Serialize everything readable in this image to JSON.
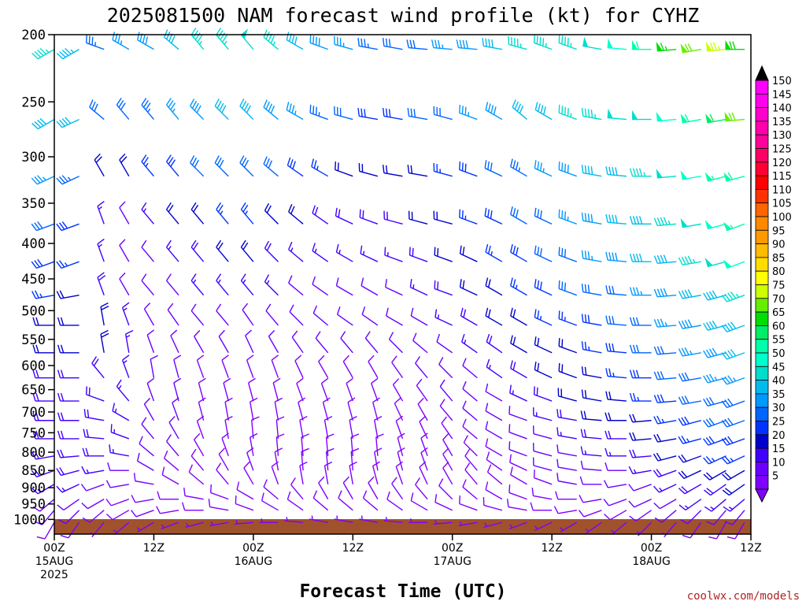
{
  "chart_data": {
    "type": "wind-barb profile (time-height)",
    "title": "2025081500 NAM forecast wind profile (kt) for CYHZ",
    "xlabel": "Forecast Time (UTC)",
    "ylabel": "",
    "y_axis": {
      "scale": "pressure (log), inverted",
      "ylim": [
        1050,
        200
      ],
      "ticks": [
        200,
        250,
        300,
        350,
        400,
        450,
        500,
        550,
        600,
        650,
        700,
        750,
        800,
        850,
        900,
        950,
        1000
      ]
    },
    "x_axis": {
      "range_hours": [
        0,
        84
      ],
      "ticks": [
        {
          "hour": 0,
          "l1": "00Z",
          "l2": "15AUG",
          "l3": "2025"
        },
        {
          "hour": 12,
          "l1": "12Z",
          "l2": "",
          "l3": ""
        },
        {
          "hour": 24,
          "l1": "00Z",
          "l2": "16AUG",
          "l3": ""
        },
        {
          "hour": 36,
          "l1": "12Z",
          "l2": "",
          "l3": ""
        },
        {
          "hour": 48,
          "l1": "00Z",
          "l2": "17AUG",
          "l3": ""
        },
        {
          "hour": 60,
          "l1": "12Z",
          "l2": "",
          "l3": ""
        },
        {
          "hour": 72,
          "l1": "00Z",
          "l2": "18AUG",
          "l3": ""
        },
        {
          "hour": 84,
          "l1": "12Z",
          "l2": "",
          "l3": ""
        }
      ]
    },
    "grid": false,
    "ground_color": "#a0522d",
    "profile_levels_mb": [
      210,
      265,
      320,
      375,
      425,
      475,
      525,
      575,
      625,
      675,
      720,
      765,
      810,
      850,
      890,
      935,
      970,
      1010
    ],
    "profile_times_h": [
      0,
      3,
      6,
      9,
      12,
      15,
      18,
      21,
      24,
      27,
      30,
      33,
      36,
      39,
      42,
      45,
      48,
      51,
      54,
      57,
      60,
      63,
      66,
      69,
      72,
      75,
      78,
      81,
      84
    ],
    "wind_speed_kt_grid_note": "rows = profile_levels_mb (top to bottom), columns = profile_times_h",
    "wind_speed_kt": [
      [
        45,
        43,
        33,
        35,
        38,
        40,
        45,
        47,
        49,
        47,
        42,
        38,
        35,
        33,
        32,
        32,
        35,
        38,
        42,
        45,
        47,
        47,
        48,
        50,
        58,
        65,
        72,
        75,
        68
      ],
      [
        42,
        40,
        30,
        30,
        33,
        35,
        38,
        40,
        40,
        38,
        35,
        33,
        30,
        28,
        28,
        30,
        32,
        35,
        38,
        40,
        42,
        45,
        45,
        48,
        48,
        52,
        58,
        62,
        70
      ],
      [
        35,
        33,
        20,
        20,
        25,
        28,
        30,
        32,
        32,
        30,
        28,
        25,
        22,
        22,
        22,
        22,
        25,
        28,
        30,
        33,
        35,
        38,
        40,
        42,
        45,
        48,
        52,
        55,
        58
      ],
      [
        30,
        28,
        15,
        12,
        15,
        20,
        22,
        25,
        25,
        22,
        20,
        18,
        18,
        18,
        18,
        20,
        22,
        25,
        28,
        30,
        32,
        35,
        38,
        40,
        42,
        45,
        48,
        50,
        55
      ],
      [
        28,
        25,
        15,
        10,
        10,
        15,
        18,
        20,
        20,
        18,
        15,
        15,
        15,
        15,
        15,
        18,
        20,
        22,
        25,
        28,
        30,
        32,
        35,
        38,
        40,
        42,
        45,
        48,
        50
      ],
      [
        25,
        22,
        18,
        12,
        10,
        12,
        15,
        15,
        15,
        15,
        12,
        12,
        12,
        12,
        12,
        15,
        18,
        20,
        22,
        25,
        28,
        30,
        30,
        32,
        35,
        38,
        40,
        42,
        45
      ],
      [
        22,
        20,
        20,
        15,
        10,
        10,
        12,
        12,
        12,
        12,
        10,
        10,
        10,
        10,
        10,
        12,
        15,
        18,
        20,
        22,
        25,
        25,
        28,
        30,
        32,
        35,
        38,
        40,
        42
      ],
      [
        20,
        20,
        20,
        15,
        12,
        10,
        10,
        10,
        10,
        10,
        10,
        10,
        10,
        10,
        10,
        10,
        12,
        15,
        18,
        20,
        22,
        22,
        25,
        28,
        30,
        32,
        35,
        38,
        40
      ],
      [
        18,
        18,
        18,
        15,
        12,
        10,
        8,
        8,
        8,
        8,
        8,
        8,
        8,
        8,
        8,
        10,
        10,
        12,
        15,
        18,
        20,
        22,
        22,
        25,
        28,
        30,
        30,
        35,
        35
      ],
      [
        18,
        18,
        18,
        15,
        12,
        10,
        8,
        8,
        8,
        8,
        8,
        8,
        8,
        8,
        8,
        8,
        10,
        10,
        12,
        15,
        18,
        20,
        22,
        22,
        25,
        28,
        30,
        30,
        32
      ],
      [
        18,
        18,
        18,
        15,
        12,
        10,
        8,
        8,
        8,
        8,
        8,
        8,
        8,
        8,
        8,
        8,
        8,
        10,
        10,
        12,
        15,
        18,
        20,
        20,
        22,
        25,
        28,
        30,
        30
      ],
      [
        18,
        18,
        18,
        15,
        12,
        10,
        8,
        8,
        8,
        8,
        8,
        8,
        8,
        8,
        8,
        8,
        8,
        8,
        10,
        10,
        12,
        15,
        18,
        18,
        20,
        22,
        25,
        28,
        28
      ],
      [
        18,
        18,
        18,
        15,
        12,
        10,
        8,
        8,
        8,
        8,
        8,
        8,
        8,
        8,
        8,
        8,
        8,
        8,
        8,
        10,
        10,
        12,
        15,
        15,
        18,
        20,
        22,
        25,
        25
      ],
      [
        18,
        18,
        15,
        12,
        10,
        8,
        8,
        8,
        8,
        8,
        8,
        8,
        8,
        8,
        8,
        8,
        8,
        8,
        8,
        8,
        10,
        10,
        12,
        12,
        15,
        18,
        20,
        22,
        22
      ],
      [
        15,
        15,
        12,
        10,
        8,
        8,
        8,
        8,
        8,
        8,
        8,
        8,
        8,
        8,
        8,
        8,
        8,
        8,
        8,
        8,
        8,
        10,
        10,
        10,
        12,
        15,
        18,
        18,
        20
      ],
      [
        12,
        12,
        10,
        8,
        8,
        8,
        8,
        8,
        8,
        8,
        8,
        8,
        8,
        8,
        8,
        8,
        8,
        8,
        8,
        8,
        8,
        8,
        8,
        10,
        10,
        12,
        15,
        15,
        15
      ],
      [
        10,
        10,
        8,
        8,
        8,
        8,
        8,
        8,
        8,
        8,
        8,
        8,
        8,
        8,
        8,
        8,
        8,
        8,
        8,
        8,
        8,
        8,
        8,
        8,
        8,
        10,
        12,
        12,
        12
      ],
      [
        8,
        8,
        5,
        5,
        5,
        5,
        5,
        5,
        5,
        5,
        5,
        5,
        5,
        5,
        5,
        5,
        5,
        5,
        5,
        5,
        5,
        5,
        5,
        5,
        5,
        5,
        8,
        8,
        8
      ]
    ],
    "wind_dir_deg_note": "meteorological direction (from), rows match profile_levels_mb",
    "wind_dir_deg": [
      [
        240,
        240,
        290,
        300,
        300,
        310,
        320,
        320,
        320,
        310,
        300,
        290,
        285,
        280,
        280,
        275,
        275,
        275,
        280,
        285,
        290,
        290,
        280,
        275,
        270,
        265,
        260,
        265,
        270
      ],
      [
        240,
        245,
        310,
        320,
        320,
        320,
        315,
        315,
        315,
        310,
        300,
        290,
        285,
        280,
        280,
        280,
        285,
        290,
        300,
        310,
        300,
        290,
        280,
        275,
        270,
        265,
        260,
        260,
        265
      ],
      [
        245,
        245,
        330,
        330,
        320,
        320,
        315,
        315,
        315,
        310,
        305,
        300,
        290,
        285,
        280,
        280,
        285,
        290,
        295,
        300,
        295,
        290,
        280,
        275,
        270,
        265,
        260,
        255,
        255
      ],
      [
        250,
        250,
        340,
        330,
        320,
        320,
        320,
        320,
        320,
        315,
        310,
        305,
        295,
        290,
        285,
        285,
        285,
        290,
        295,
        300,
        295,
        290,
        280,
        275,
        270,
        265,
        260,
        255,
        250
      ],
      [
        250,
        250,
        340,
        330,
        320,
        320,
        320,
        320,
        320,
        315,
        310,
        305,
        300,
        295,
        290,
        290,
        290,
        295,
        300,
        300,
        295,
        290,
        280,
        275,
        270,
        265,
        260,
        255,
        250
      ],
      [
        260,
        260,
        340,
        330,
        320,
        320,
        320,
        320,
        320,
        315,
        310,
        305,
        300,
        300,
        295,
        295,
        290,
        295,
        300,
        300,
        295,
        290,
        280,
        275,
        270,
        265,
        260,
        255,
        250
      ],
      [
        270,
        270,
        350,
        340,
        330,
        325,
        320,
        320,
        325,
        320,
        315,
        310,
        305,
        305,
        300,
        300,
        295,
        300,
        300,
        300,
        295,
        290,
        280,
        275,
        270,
        265,
        260,
        255,
        250
      ],
      [
        270,
        270,
        350,
        350,
        340,
        335,
        330,
        330,
        335,
        330,
        325,
        320,
        320,
        320,
        315,
        310,
        305,
        305,
        305,
        300,
        295,
        290,
        280,
        275,
        270,
        265,
        260,
        255,
        250
      ],
      [
        270,
        270,
        320,
        340,
        350,
        345,
        340,
        340,
        340,
        340,
        335,
        330,
        330,
        330,
        325,
        320,
        315,
        310,
        305,
        300,
        295,
        290,
        280,
        275,
        270,
        265,
        260,
        255,
        250
      ],
      [
        270,
        270,
        290,
        320,
        340,
        345,
        345,
        345,
        345,
        345,
        340,
        340,
        340,
        340,
        330,
        325,
        320,
        310,
        300,
        295,
        290,
        285,
        280,
        275,
        270,
        265,
        260,
        255,
        250
      ],
      [
        270,
        270,
        280,
        300,
        330,
        340,
        345,
        350,
        350,
        350,
        345,
        345,
        345,
        345,
        335,
        330,
        320,
        310,
        300,
        290,
        285,
        280,
        275,
        270,
        265,
        260,
        255,
        250,
        250
      ],
      [
        270,
        270,
        275,
        290,
        320,
        330,
        340,
        350,
        355,
        355,
        350,
        350,
        350,
        350,
        340,
        335,
        325,
        310,
        300,
        290,
        285,
        280,
        275,
        270,
        265,
        260,
        255,
        250,
        250
      ],
      [
        260,
        265,
        270,
        280,
        310,
        320,
        330,
        340,
        350,
        355,
        355,
        355,
        355,
        355,
        345,
        340,
        330,
        315,
        300,
        290,
        285,
        280,
        275,
        270,
        265,
        255,
        250,
        245,
        245
      ],
      [
        250,
        255,
        260,
        270,
        300,
        310,
        320,
        330,
        340,
        350,
        355,
        355,
        355,
        350,
        345,
        340,
        330,
        320,
        305,
        295,
        285,
        280,
        275,
        270,
        260,
        250,
        245,
        240,
        240
      ],
      [
        240,
        245,
        250,
        260,
        280,
        300,
        310,
        320,
        330,
        340,
        350,
        350,
        350,
        345,
        340,
        335,
        330,
        320,
        310,
        300,
        290,
        280,
        270,
        260,
        250,
        245,
        240,
        235,
        235
      ],
      [
        230,
        235,
        240,
        250,
        260,
        270,
        280,
        290,
        300,
        310,
        320,
        330,
        330,
        330,
        325,
        320,
        315,
        310,
        300,
        290,
        280,
        270,
        260,
        250,
        245,
        240,
        235,
        230,
        230
      ],
      [
        220,
        225,
        230,
        240,
        250,
        260,
        270,
        280,
        290,
        300,
        305,
        310,
        310,
        310,
        305,
        300,
        295,
        290,
        285,
        280,
        270,
        260,
        250,
        240,
        235,
        230,
        225,
        220,
        220
      ],
      [
        210,
        215,
        220,
        230,
        240,
        250,
        255,
        260,
        265,
        270,
        275,
        280,
        280,
        280,
        275,
        270,
        265,
        260,
        255,
        250,
        245,
        240,
        235,
        230,
        225,
        220,
        215,
        210,
        210
      ]
    ],
    "colorbar": {
      "label_values": [
        5,
        10,
        15,
        20,
        25,
        30,
        35,
        40,
        45,
        50,
        55,
        60,
        65,
        70,
        75,
        80,
        85,
        90,
        95,
        100,
        105,
        110,
        115,
        120,
        125,
        130,
        135,
        140,
        145,
        150
      ],
      "colors": [
        "#8000ff",
        "#6a00ff",
        "#4000ff",
        "#0000cc",
        "#0033ff",
        "#0066ff",
        "#0099ff",
        "#00bbee",
        "#00ddcc",
        "#00ffcc",
        "#00ffaa",
        "#00ee66",
        "#00dd00",
        "#66ee00",
        "#ccff00",
        "#ffff00",
        "#ffdd00",
        "#ffbb00",
        "#ff9900",
        "#ff8800",
        "#ff6600",
        "#ff3300",
        "#ff0000",
        "#ff0033",
        "#ff0066",
        "#ff0099",
        "#ff00aa",
        "#ff00cc",
        "#ff00ee",
        "#ff00ff"
      ]
    }
  },
  "credit": "coolwx.com/models"
}
